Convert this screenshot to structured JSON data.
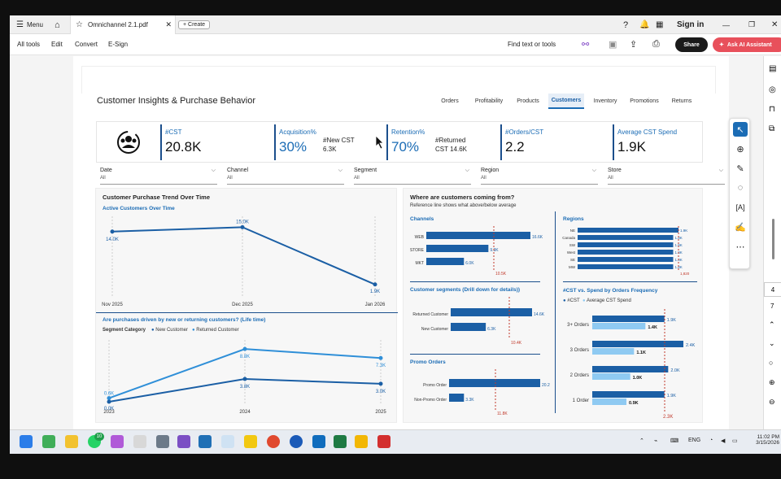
{
  "browser": {
    "menu_label": "Menu",
    "tab_title": "Omnichannel 2.1.pdf",
    "create_label": "Create",
    "sign_in": "Sign in"
  },
  "toolbar": {
    "items": [
      "All tools",
      "Edit",
      "Convert",
      "E-Sign"
    ],
    "search_label": "Find text or tools",
    "share_label": "Share",
    "ai_label": "Ask AI Assistant"
  },
  "dashboard": {
    "title": "Customer Insights & Purchase Behavior",
    "tabs": [
      "Orders",
      "Profitability",
      "Products",
      "Customers",
      "Inventory",
      "Promotions",
      "Returns"
    ],
    "active_tab": "Customers",
    "kpis": {
      "cst_label": "#CST",
      "cst_value": "20.8K",
      "acq_label": "Acquisition%",
      "acq_value": "30%",
      "new_cst_label": "#New CST",
      "new_cst_value": "6.3K",
      "ret_label": "Retention%",
      "ret_value": "70%",
      "returned_label": "#Returned",
      "returned_value": "CST 14.6K",
      "orders_label": "#Orders/CST",
      "orders_value": "2.2",
      "spend_label": "Average CST Spend",
      "spend_value": "1.9K"
    },
    "slicers": [
      {
        "label": "Date",
        "value": "All"
      },
      {
        "label": "Channel",
        "value": "All"
      },
      {
        "label": "Segment",
        "value": "All"
      },
      {
        "label": "Region",
        "value": "All"
      },
      {
        "label": "Store",
        "value": "All"
      }
    ],
    "trend_panel": {
      "title": "Customer Purchase Trend Over Time",
      "subtitle": "Active Customers Over Time",
      "new_vs_returning_title": "Are purchases driven by new or returning customers? (Life time)",
      "segment_category_label": "Segment Category",
      "legend_new": "New Customer",
      "legend_returned": "Returned Customer"
    },
    "where_panel": {
      "title": "Where are customers coming from?",
      "subtitle": "Reference line shows what above/below average",
      "channels_title": "Channels",
      "regions_title": "Regions",
      "segments_title": "Customer segments (Drill down for details))",
      "promo_title": "Promo Orders",
      "freq_title": "#CST vs. Spend by Orders Frequency",
      "freq_legend_1": "#CST",
      "freq_legend_2": "Average CST Spend"
    }
  },
  "chart_data": [
    {
      "type": "line",
      "title": "Active Customers Over Time",
      "categories": [
        "Nov 2025",
        "Dec 2025",
        "Jan 2026"
      ],
      "series": [
        {
          "values": [
            14.0,
            15.0,
            1.9
          ]
        }
      ],
      "value_labels": [
        "14.0K",
        "15.0K",
        "1.9K"
      ],
      "unit": "K"
    },
    {
      "type": "line",
      "title": "Are purchases driven by new or returning customers? (Life time)",
      "categories": [
        "2023",
        "2024",
        "2025"
      ],
      "series": [
        {
          "name": "Returned Customer",
          "values": [
            0.6,
            8.8,
            7.3
          ],
          "labels": [
            "0.6K",
            "8.8K",
            "7.3K"
          ]
        },
        {
          "name": "New Customer",
          "values": [
            0.0,
            3.8,
            3.0
          ],
          "labels": [
            "0.0K",
            "3.8K",
            "3.0K"
          ]
        }
      ]
    },
    {
      "type": "bar",
      "title": "Channels",
      "categories": [
        "WEB",
        "STORE",
        "MKT"
      ],
      "values": [
        16.6,
        9.9,
        6.0
      ],
      "value_labels": [
        "16.6K",
        "9.9K",
        "6.0K"
      ],
      "reference_label": "10.5K"
    },
    {
      "type": "bar",
      "title": "Regions",
      "categories": [
        "NE",
        "Canada",
        "SW",
        "West",
        "SE",
        "MW"
      ],
      "values": [
        1.9,
        1.8,
        1.8,
        1.8,
        1.8,
        1.8
      ],
      "value_labels": [
        "1.9K",
        "1.8K",
        "1.8K",
        "1.8K",
        "1.8K",
        "1.8K"
      ],
      "reference_label": "1,820"
    },
    {
      "type": "bar",
      "title": "Customer segments (Drill down for details))",
      "categories": [
        "Returned Customer",
        "New Customer"
      ],
      "values": [
        14.6,
        6.3
      ],
      "value_labels": [
        "14.6K",
        "6.3K"
      ],
      "reference_label": "10.4K"
    },
    {
      "type": "bar",
      "title": "Promo Orders",
      "categories": [
        "Promo Order",
        "Non-Promo Order"
      ],
      "values": [
        20.2,
        3.3
      ],
      "value_labels": [
        "20.2K",
        "3.3K"
      ],
      "reference_label": "11.8K"
    },
    {
      "type": "bar",
      "title": "#CST vs. Spend by Orders Frequency",
      "categories": [
        "3+ Orders",
        "3 Orders",
        "2 Orders",
        "1 Order"
      ],
      "series": [
        {
          "name": "#CST",
          "values": [
            1.9,
            2.4,
            2.0,
            1.9
          ],
          "labels": [
            "1.9K",
            "2.4K",
            "2.0K",
            "1.9K"
          ]
        },
        {
          "name": "Average CST Spend",
          "values": [
            1.4,
            1.1,
            1.0,
            0.9
          ],
          "labels": [
            "1.4K",
            "1.1K",
            "1.0K",
            "0.9K"
          ]
        }
      ],
      "reference_label": "2.3K"
    }
  ],
  "side_numbers": [
    "4",
    "7"
  ],
  "tray": {
    "lang": "ENG",
    "time": "11:02 PM",
    "date": "3/15/2026"
  },
  "taskbar_badge": "10",
  "colors": {
    "accent": "#1b6cb5",
    "dark_series": "#1b5fa5",
    "light_series": "#2f8fd8",
    "reference": "#c0392b",
    "share": "#1a1a1a",
    "ai": "#e8505b"
  }
}
